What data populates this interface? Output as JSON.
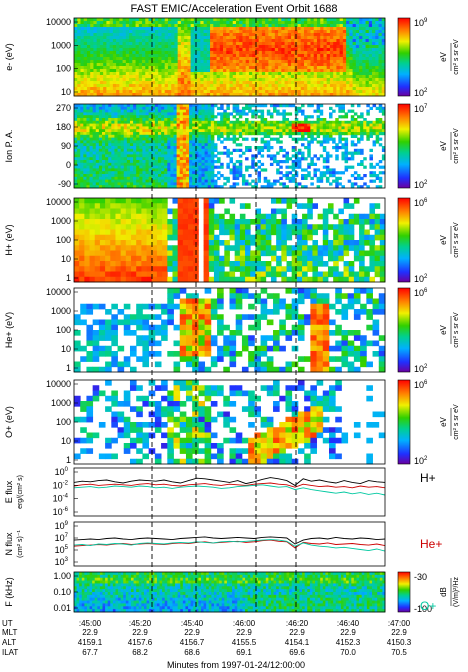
{
  "chart_data": {
    "type": "heatmap",
    "title": "FAST EMIC/Acceleration Event Orbit 1688",
    "xlabel": "Minutes from 1997-01-24/12:00:00",
    "x_event_lines": [
      ":45:20",
      ":45:40",
      ":46:00",
      ":46:20",
      ":46:40"
    ],
    "panels": [
      {
        "id": "electrons",
        "ylabel": "e- (eV)",
        "scale": "log",
        "yticks": [
          "10000",
          "1000",
          "100",
          "10"
        ],
        "colorbar": {
          "max": "10",
          "max_exp": "9",
          "min": "10",
          "min_exp": "2",
          "unit": "eV",
          "label": "cm² s sr eV"
        }
      },
      {
        "id": "ion_pa",
        "ylabel": "Ion P. A.",
        "yticks": [
          "270",
          "180",
          "90",
          "0",
          "-90"
        ],
        "colorbar": {
          "max": "10",
          "max_exp": "7",
          "min": "10",
          "min_exp": "2",
          "unit": "eV",
          "label": "cm² s sr eV"
        }
      },
      {
        "id": "hplus",
        "ylabel": "H+ (eV)",
        "scale": "log",
        "yticks": [
          "10000",
          "1000",
          "100",
          "10",
          "1"
        ],
        "colorbar": {
          "max": "10",
          "max_exp": "6",
          "min": "10",
          "min_exp": "2",
          "unit": "eV",
          "label": "cm² s sr eV"
        }
      },
      {
        "id": "heplus",
        "ylabel": "He+ (eV)",
        "scale": "log",
        "yticks": [
          "10000",
          "1000",
          "100",
          "10",
          "1"
        ],
        "colorbar": {
          "max": "10",
          "max_exp": "6",
          "min": "10",
          "min_exp": "2",
          "unit": "eV",
          "label": "cm² s sr eV"
        }
      },
      {
        "id": "oplus",
        "ylabel": "O+ (eV)",
        "scale": "log",
        "yticks": [
          "10000",
          "1000",
          "100",
          "10",
          "1"
        ],
        "colorbar": {
          "max": "10",
          "max_exp": "6",
          "min": "10",
          "min_exp": "2",
          "unit": "eV",
          "label": "cm² s sr eV"
        }
      },
      {
        "id": "eflux",
        "ylabel": "E flux",
        "ylabel2": "erg/(cm² s)",
        "yticks": [
          "10",
          "10",
          "10",
          "10"
        ],
        "ytick_exps": [
          "0",
          "-2",
          "-4",
          "-6"
        ]
      },
      {
        "id": "nflux",
        "ylabel": "N flux",
        "ylabel2": "(cm² s)⁻¹",
        "yticks": [
          "10",
          "10",
          "10",
          "10"
        ],
        "ytick_exps": [
          "9",
          "7",
          "5",
          "3"
        ]
      },
      {
        "id": "wave",
        "ylabel": "F (kHz)",
        "scale": "log",
        "yticks": [
          "1.00",
          "0.10",
          "0.01"
        ],
        "colorbar": {
          "max": "-30",
          "min": "-100",
          "unit": "dB",
          "label": "(V/m)²/Hz"
        }
      }
    ],
    "line_series": [
      {
        "name": "H+",
        "color": "#000000",
        "eflux": [
          -1.4,
          -1.2,
          -1.3,
          -1.1,
          -1.0,
          -1.3,
          -1.5,
          -1.2,
          -1.0,
          -1.1,
          -1.2,
          -1.0,
          -1.3,
          -1.5,
          -1.1,
          -0.7,
          -0.8,
          -1.0,
          -1.2,
          -1.4,
          -1.1,
          -1.6,
          -1.3,
          -0.9,
          -0.6,
          -0.8,
          -1.1,
          -1.9,
          -0.8,
          -1.2,
          -1.0,
          -1.3,
          -1.5,
          -1.1,
          -1.4,
          -1.6,
          -1.1,
          -1.3,
          -1.4
        ],
        "nflux": [
          6.7,
          6.8,
          6.9,
          6.8,
          7.0,
          7.1,
          6.9,
          6.8,
          7.0,
          7.1,
          7.0,
          6.9,
          6.8,
          7.0,
          7.1,
          7.2,
          7.3,
          7.1,
          7.0,
          7.1,
          7.2,
          7.1,
          7.0,
          7.2,
          7.3,
          7.2,
          7.1,
          6.0,
          6.7,
          7.0,
          7.1,
          6.9,
          7.2,
          7.0,
          6.9,
          7.1,
          7.0,
          6.8,
          6.9
        ]
      },
      {
        "name": "He+",
        "color": "#cc0000",
        "eflux": [
          -2.0,
          -1.8,
          -1.7,
          -1.9,
          -1.8,
          -1.7,
          -1.8,
          -1.9,
          -1.7,
          -1.6,
          -1.8,
          -1.7,
          -1.9,
          -2.0,
          -1.8,
          -1.7,
          -1.6,
          -1.8,
          -1.9,
          -1.7,
          -1.8,
          -1.9,
          -1.7,
          -1.6,
          -1.5,
          -1.7,
          -1.8,
          -2.2,
          -1.7,
          -1.9,
          -2.1,
          -2.0,
          -2.2,
          -2.1,
          -2.3,
          -2.0,
          -2.2,
          -2.1,
          -2.3
        ],
        "nflux": [
          5.6,
          5.7,
          5.8,
          5.9,
          5.8,
          6.0,
          6.1,
          5.9,
          6.0,
          6.1,
          6.0,
          5.9,
          6.1,
          6.2,
          6.1,
          6.3,
          6.4,
          6.2,
          6.3,
          6.4,
          6.5,
          6.3,
          6.4,
          6.6,
          6.7,
          6.5,
          6.4,
          5.3,
          6.3,
          6.1,
          6.0,
          6.2,
          5.9,
          6.0,
          6.1,
          5.9,
          5.8,
          6.0,
          5.7
        ]
      },
      {
        "name": "O+",
        "color": "#00c8a0",
        "eflux": [
          -2.3,
          -2.2,
          -2.1,
          -2.3,
          -2.2,
          -2.0,
          -2.1,
          -2.2,
          -2.0,
          -2.1,
          -2.3,
          -2.2,
          -2.4,
          -2.2,
          -2.1,
          -2.0,
          -2.1,
          -2.2,
          -2.4,
          -2.3,
          -2.1,
          -2.0,
          -1.9,
          -1.8,
          -2.0,
          -2.2,
          -2.1,
          -2.6,
          -2.3,
          -2.6,
          -2.8,
          -3.0,
          -3.2,
          -3.0,
          -3.3,
          -3.1,
          -3.4,
          -3.2,
          -3.5
        ],
        "nflux": [
          5.8,
          5.9,
          5.7,
          6.0,
          5.9,
          6.1,
          6.0,
          5.8,
          6.1,
          6.2,
          6.1,
          6.0,
          6.2,
          6.3,
          6.2,
          6.4,
          6.3,
          6.2,
          6.4,
          6.5,
          6.4,
          6.5,
          6.6,
          6.7,
          6.8,
          6.7,
          6.5,
          5.6,
          6.2,
          5.8,
          5.6,
          5.5,
          5.3,
          5.4,
          5.2,
          5.0,
          4.8,
          5.1,
          4.7
        ]
      }
    ],
    "orbit_table": {
      "row_labels": [
        "UT",
        "MLT",
        "ALT",
        "ILAT"
      ],
      "columns": [
        {
          "UT": ":45:00",
          "MLT": "22.9",
          "ALT": "4159.1",
          "ILAT": "67.7"
        },
        {
          "UT": ":45:20",
          "MLT": "22.9",
          "ALT": "4157.6",
          "ILAT": "68.2"
        },
        {
          "UT": ":45:40",
          "MLT": "22.9",
          "ALT": "4156.7",
          "ILAT": "68.6"
        },
        {
          "UT": ":46:00",
          "MLT": "22.9",
          "ALT": "4155.5",
          "ILAT": "69.1"
        },
        {
          "UT": ":46:20",
          "MLT": "22.9",
          "ALT": "4154.1",
          "ILAT": "69.6"
        },
        {
          "UT": ":46:40",
          "MLT": "22.9",
          "ALT": "4152.3",
          "ILAT": "70.0"
        },
        {
          "UT": ":47:00",
          "MLT": "22.9",
          "ALT": "4150.3",
          "ILAT": "70.5"
        }
      ]
    }
  }
}
